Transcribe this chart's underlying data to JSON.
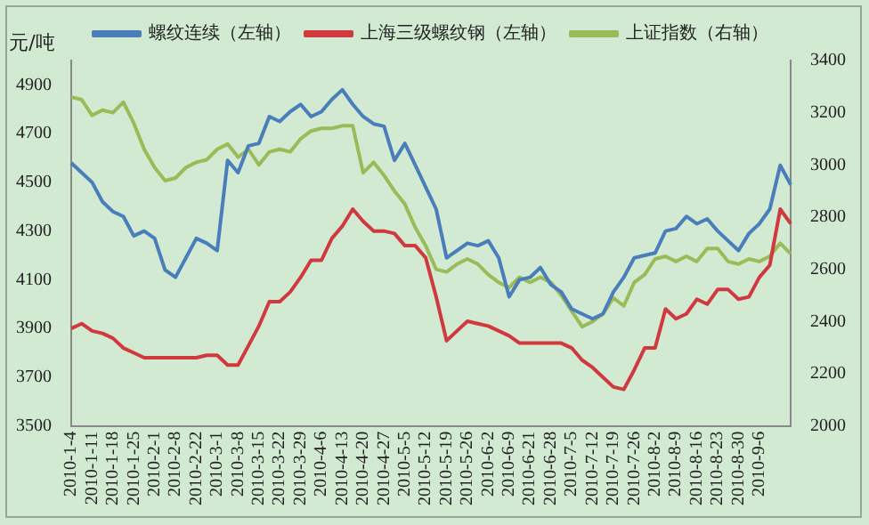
{
  "chart_data": {
    "type": "line",
    "ylabel": "元/吨",
    "categories": [
      "2010-1-4",
      null,
      "2010-1-11",
      null,
      "2010-1-18",
      null,
      "2010-1-25",
      null,
      "2010-2-1",
      null,
      "2010-2-8",
      null,
      "2010-2-22",
      null,
      "2010-3-1",
      null,
      "2010-3-8",
      null,
      "2010-3-15",
      null,
      "2010-3-22",
      null,
      "2010-3-29",
      null,
      "2010-4-6",
      null,
      "2010-4-13",
      null,
      "2010-4-20",
      null,
      "2010-4-27",
      null,
      "2010-5-5",
      null,
      "2010-5-12",
      null,
      "2010-5-19",
      null,
      "2010-5-26",
      null,
      "2010-6-2",
      null,
      "2010-6-9",
      null,
      "2010-6-21",
      null,
      "2010-6-28",
      null,
      "2010-7-5",
      null,
      "2010-7-12",
      null,
      "2010-7-19",
      null,
      "2010-7-26",
      null,
      "2010-8-2",
      null,
      "2010-8-9",
      null,
      "2010-8-16",
      null,
      "2010-8-23",
      null,
      "2010-8-30",
      null,
      "2010-9-6",
      null,
      null,
      null
    ],
    "series": [
      {
        "name": "螺纹连续（左轴）",
        "color": "#4a7ebb",
        "values": [
          4580,
          4540,
          4500,
          4420,
          4380,
          4360,
          4280,
          4300,
          4270,
          4140,
          4110,
          4190,
          4270,
          4250,
          4220,
          4590,
          4540,
          4650,
          4660,
          4770,
          4750,
          4790,
          4820,
          4770,
          4790,
          4840,
          4880,
          4820,
          4770,
          4740,
          4730,
          4590,
          4660,
          4570,
          4480,
          4390,
          4190,
          4220,
          4250,
          4240,
          4260,
          4190,
          4030,
          4100,
          4110,
          4150,
          4080,
          4050,
          3980,
          3960,
          3940,
          3960,
          4050,
          4110,
          4190,
          4200,
          4210,
          4300,
          4310,
          4360,
          4330,
          4350,
          4300,
          4260,
          4220,
          4290,
          4330,
          4390,
          4570,
          4490
        ]
      },
      {
        "name": "上海三级螺纹钢（左轴）",
        "color": "#d0393e",
        "values": [
          3900,
          3920,
          3890,
          3880,
          3860,
          3820,
          3800,
          3780,
          3780,
          3780,
          3780,
          3780,
          3780,
          3790,
          3790,
          3750,
          3750,
          3830,
          3910,
          4010,
          4010,
          4050,
          4110,
          4180,
          4180,
          4270,
          4320,
          4390,
          4340,
          4300,
          4300,
          4290,
          4240,
          4240,
          4190,
          4030,
          3850,
          3890,
          3930,
          3920,
          3910,
          3890,
          3870,
          3840,
          3840,
          3840,
          3840,
          3840,
          3820,
          3770,
          3740,
          3700,
          3660,
          3650,
          3730,
          3820,
          3820,
          3980,
          3940,
          3960,
          4020,
          4000,
          4060,
          4060,
          4020,
          4030,
          4110,
          4160,
          4390,
          4330
        ]
      },
      {
        "name": "上证指数（右轴）",
        "color": "#9bbb59",
        "axis": "y2",
        "values": [
          3260,
          3250,
          3190,
          3210,
          3200,
          3240,
          3160,
          3060,
          2990,
          2940,
          2950,
          2990,
          3010,
          3020,
          3060,
          3080,
          3030,
          3060,
          3000,
          3050,
          3060,
          3050,
          3100,
          3130,
          3140,
          3140,
          3150,
          3150,
          2970,
          3010,
          2960,
          2900,
          2850,
          2760,
          2690,
          2600,
          2590,
          2620,
          2640,
          2620,
          2580,
          2550,
          2530,
          2570,
          2550,
          2570,
          2550,
          2500,
          2440,
          2380,
          2400,
          2430,
          2490,
          2460,
          2550,
          2580,
          2640,
          2650,
          2630,
          2650,
          2630,
          2680,
          2680,
          2630,
          2620,
          2640,
          2630,
          2650,
          2700,
          2660
        ]
      }
    ],
    "ylim": [
      3500,
      5000
    ],
    "yticks": [
      3500,
      3700,
      3900,
      4100,
      4300,
      4500,
      4700,
      4900
    ],
    "y2lim": [
      2000,
      3400
    ],
    "y2ticks": [
      2000,
      2200,
      2400,
      2600,
      2800,
      3000,
      3200,
      3400
    ],
    "legend": "top",
    "grid": false,
    "marker": "none",
    "line_style": "solid"
  }
}
